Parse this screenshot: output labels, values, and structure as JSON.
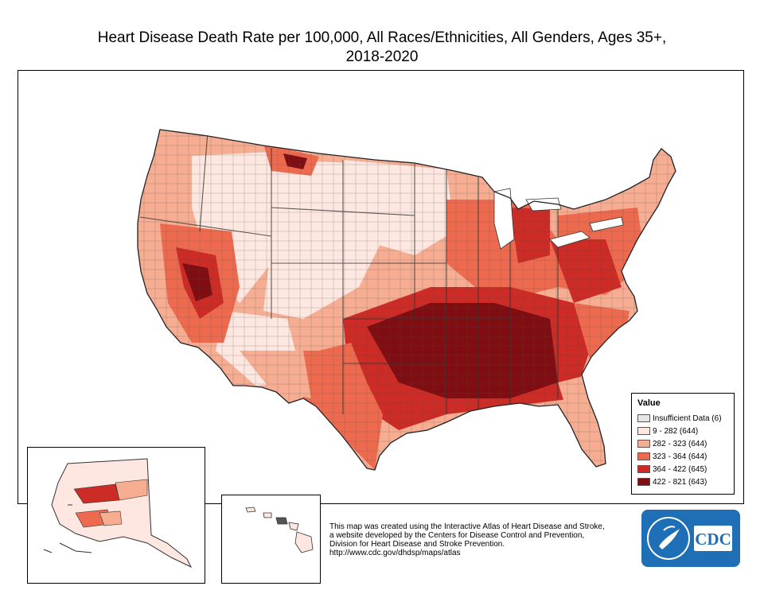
{
  "title": {
    "line1": "Heart Disease Death Rate per 100,000, All Races/Ethnicities, All Genders, Ages 35+,",
    "line2": "2018-2020"
  },
  "legend": {
    "title": "Value",
    "items": [
      {
        "label": "Insufficient Data (6)",
        "color": "#e6e6e6"
      },
      {
        "label": "9 - 282 (644)",
        "color": "#fde7e0"
      },
      {
        "label": "282 - 323 (644)",
        "color": "#f6ad92"
      },
      {
        "label": "323 - 364 (644)",
        "color": "#ee6a4f"
      },
      {
        "label": "364 - 422 (645)",
        "color": "#cc2b26"
      },
      {
        "label": "422 - 821 (643)",
        "color": "#7f0d12"
      }
    ]
  },
  "credit": {
    "line1": "This map was created using the Interactive Atlas of Heart Disease and Stroke,",
    "line2": "a website developed by the Centers for Disease Control and Prevention,",
    "line3": "Division for Heart Disease and Stroke Prevention.",
    "line4": "http://www.cdc.gov/dhdsp/maps/atlas"
  },
  "logo": {
    "text": "CDC",
    "color": "#1e6fb5"
  },
  "colors": {
    "boundary": "#555555",
    "border": "#000000"
  }
}
